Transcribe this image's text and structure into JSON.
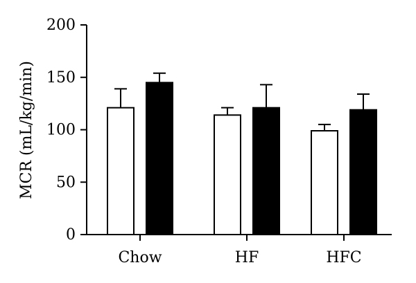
{
  "chart_data": {
    "type": "bar",
    "title": "",
    "xlabel": "",
    "ylabel": "MCR (mL/kg/min)",
    "ylim": [
      0,
      200
    ],
    "yticks": [
      0,
      50,
      100,
      150,
      200
    ],
    "categories": [
      "Chow",
      "HF",
      "HFC"
    ],
    "legend": "none",
    "grid": false,
    "series": [
      {
        "fill": "#ffffff",
        "values": [
          121,
          114,
          99
        ],
        "errors": [
          18,
          7,
          6
        ]
      },
      {
        "fill": "#000000",
        "values": [
          145,
          121,
          119
        ],
        "errors": [
          9,
          22,
          15
        ]
      }
    ]
  }
}
